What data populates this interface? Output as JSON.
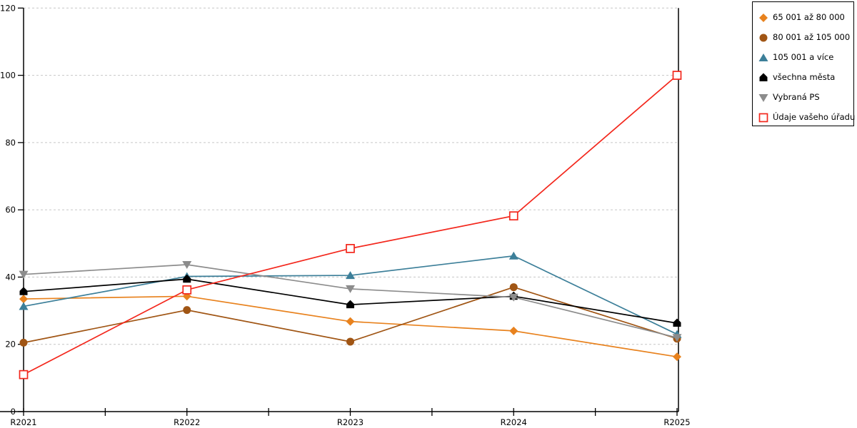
{
  "chart_data": {
    "type": "line",
    "title": "",
    "xlabel": "",
    "ylabel": "",
    "x_categories": [
      "R2021",
      "R2022",
      "R2023",
      "R2024",
      "R2025"
    ],
    "ylim": [
      0,
      120
    ],
    "ytick_step": 20,
    "yticks": [
      0,
      20,
      40,
      60,
      80,
      100,
      120
    ],
    "grid": "horizontal-dashed",
    "grid_color": "#c6c6c6",
    "axis_color": "#000000",
    "legend_position": "top-right",
    "series": [
      {
        "name": "65 001 až 80 000",
        "marker": "diamond",
        "color": "#e8821e",
        "values": [
          33.5,
          34.3,
          26.8,
          24.0,
          16.3
        ]
      },
      {
        "name": "80 001 až 105 000",
        "marker": "circle",
        "color": "#a05514",
        "values": [
          20.5,
          30.2,
          20.8,
          37.0,
          21.7
        ]
      },
      {
        "name": "105 001 a více",
        "marker": "triangle-up",
        "color": "#3c7f99",
        "values": [
          31.3,
          40.2,
          40.5,
          46.3,
          23.0
        ]
      },
      {
        "name": "všechna města",
        "marker": "pentagon",
        "color": "#000000",
        "values": [
          35.7,
          39.4,
          31.8,
          34.3,
          26.3
        ]
      },
      {
        "name": "Vybraná PS",
        "marker": "triangle-down",
        "color": "#8c8c8c",
        "values": [
          40.8,
          43.7,
          36.5,
          34.0,
          22.0
        ]
      },
      {
        "name": "Údaje vašeho úřadu",
        "marker": "square-open",
        "color": "#f3271c",
        "values": [
          11.0,
          36.2,
          48.5,
          58.2,
          100.0
        ]
      }
    ]
  }
}
